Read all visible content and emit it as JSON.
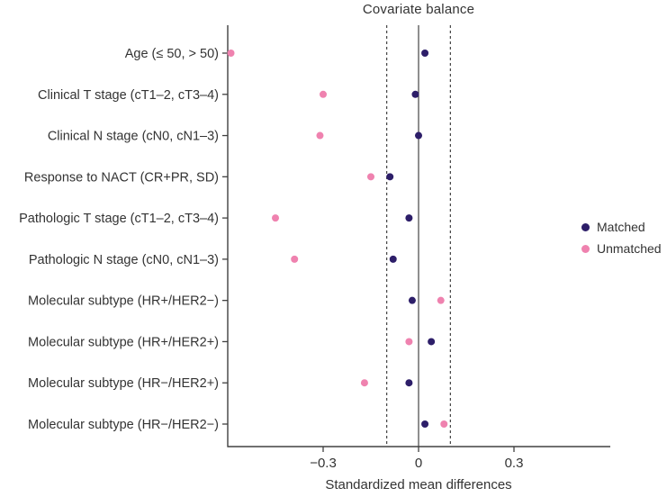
{
  "chart_data": {
    "type": "scatter",
    "title": "Covariate balance",
    "xlabel": "Standardized mean differences",
    "ylabel": "",
    "categories": [
      "Age (≤ 50, > 50)",
      "Clinical T stage (cT1–2, cT3–4)",
      "Clinical N stage (cN0, cN1–3)",
      "Response to NACT (CR+PR, SD)",
      "Pathologic T stage (cT1–2, cT3–4)",
      "Pathologic N stage (cN0, cN1–3)",
      "Molecular subtype (HR+/HER2−)",
      "Molecular subtype (HR+/HER2+)",
      "Molecular subtype (HR−/HER2+)",
      "Molecular subtype (HR−/HER2−)"
    ],
    "series": [
      {
        "name": "Matched",
        "color": "#2d1e69",
        "values": [
          0.02,
          -0.01,
          0.0,
          -0.09,
          -0.03,
          -0.08,
          -0.02,
          0.04,
          -0.03,
          0.02
        ]
      },
      {
        "name": "Unmatched",
        "color": "#ef82af",
        "values": [
          -0.59,
          -0.3,
          -0.31,
          -0.15,
          -0.45,
          -0.39,
          0.07,
          -0.03,
          -0.17,
          0.08
        ]
      }
    ],
    "xlim": [
      -0.6,
      0.6
    ],
    "x_ticks": [
      {
        "value": -0.3,
        "label": "−0.3"
      },
      {
        "value": 0,
        "label": "0"
      },
      {
        "value": 0.3,
        "label": "0.3"
      }
    ],
    "reference_line": 0,
    "threshold_lines": [
      -0.1,
      0.1
    ],
    "grid": false,
    "legend_position": "right",
    "colors": {
      "axis": "#404040",
      "text": "#333333",
      "reference": "#333333"
    }
  }
}
